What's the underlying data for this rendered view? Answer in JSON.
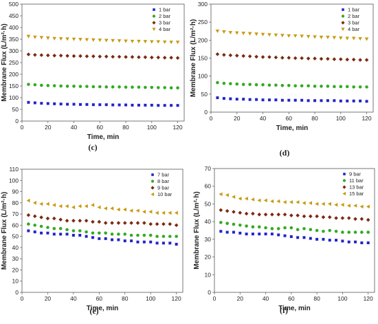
{
  "chart_data": [
    {
      "panel_label": "(c)",
      "type": "scatter",
      "xlabel": "Time, min",
      "ylabel": "Membrane Flux (L/m²·h)",
      "xlim": [
        0,
        125
      ],
      "ylim": [
        0,
        500
      ],
      "xticks": [
        0,
        20,
        40,
        60,
        80,
        100,
        120
      ],
      "yticks": [
        0,
        50,
        100,
        150,
        200,
        250,
        300,
        350,
        400,
        450,
        500
      ],
      "legend_position": "top-right",
      "series": [
        {
          "name": "1 bar",
          "color": "#2222cc",
          "marker": "square",
          "x": [
            5,
            10,
            15,
            20,
            25,
            30,
            35,
            40,
            45,
            50,
            55,
            60,
            65,
            70,
            75,
            80,
            85,
            90,
            95,
            100,
            105,
            110,
            115,
            120
          ],
          "y": [
            80,
            78,
            76,
            75,
            74,
            73,
            72,
            72,
            71,
            71,
            70,
            70,
            70,
            69,
            69,
            69,
            68,
            68,
            68,
            68,
            67,
            67,
            67,
            67
          ]
        },
        {
          "name": "2 bar",
          "color": "#33aa22",
          "marker": "circle",
          "x": [
            5,
            10,
            15,
            20,
            25,
            30,
            35,
            40,
            45,
            50,
            55,
            60,
            65,
            70,
            75,
            80,
            85,
            90,
            95,
            100,
            105,
            110,
            115,
            120
          ],
          "y": [
            157,
            155,
            153,
            152,
            151,
            150,
            149,
            149,
            148,
            148,
            147,
            147,
            146,
            146,
            146,
            145,
            145,
            145,
            144,
            144,
            143,
            143,
            142,
            142
          ]
        },
        {
          "name": "3 bar",
          "color": "#7a2a10",
          "marker": "diamond",
          "x": [
            5,
            10,
            15,
            20,
            25,
            30,
            35,
            40,
            45,
            50,
            55,
            60,
            65,
            70,
            75,
            80,
            85,
            90,
            95,
            100,
            105,
            110,
            115,
            120
          ],
          "y": [
            285,
            283,
            282,
            281,
            280,
            280,
            279,
            278,
            278,
            277,
            277,
            276,
            276,
            275,
            275,
            274,
            274,
            273,
            273,
            272,
            272,
            271,
            271,
            270
          ]
        },
        {
          "name": "4 bar",
          "color": "#c89a10",
          "marker": "triangle-down",
          "x": [
            5,
            10,
            15,
            20,
            25,
            30,
            35,
            40,
            45,
            50,
            55,
            60,
            65,
            70,
            75,
            80,
            85,
            90,
            95,
            100,
            105,
            110,
            115,
            120
          ],
          "y": [
            362,
            359,
            357,
            355,
            353,
            352,
            351,
            350,
            349,
            348,
            347,
            346,
            345,
            344,
            343,
            342,
            341,
            341,
            340,
            339,
            339,
            338,
            337,
            337
          ]
        }
      ]
    },
    {
      "panel_label": "(d)",
      "type": "scatter",
      "xlabel": "Time, min",
      "ylabel": "Membrane Flux (L/m²·h)",
      "xlim": [
        0,
        125
      ],
      "ylim": [
        0,
        300
      ],
      "xticks": [
        0,
        20,
        40,
        60,
        80,
        100,
        120
      ],
      "yticks": [
        0,
        50,
        100,
        150,
        200,
        250,
        300
      ],
      "legend_position": "top-right",
      "series": [
        {
          "name": "1 bar",
          "color": "#2222cc",
          "marker": "square",
          "x": [
            5,
            10,
            15,
            20,
            25,
            30,
            35,
            40,
            45,
            50,
            55,
            60,
            65,
            70,
            75,
            80,
            85,
            90,
            95,
            100,
            105,
            110,
            115,
            120
          ],
          "y": [
            40,
            38,
            37,
            36,
            36,
            35,
            35,
            34,
            34,
            34,
            33,
            33,
            33,
            33,
            32,
            32,
            32,
            32,
            32,
            31,
            31,
            31,
            31,
            30
          ]
        },
        {
          "name": "2 bar",
          "color": "#33aa22",
          "marker": "circle",
          "x": [
            5,
            10,
            15,
            20,
            25,
            30,
            35,
            40,
            45,
            50,
            55,
            60,
            65,
            70,
            75,
            80,
            85,
            90,
            95,
            100,
            105,
            110,
            115,
            120
          ],
          "y": [
            82,
            80,
            79,
            78,
            77,
            77,
            76,
            76,
            75,
            75,
            74,
            74,
            73,
            73,
            73,
            72,
            72,
            72,
            71,
            71,
            71,
            70,
            70,
            70
          ]
        },
        {
          "name": "3 bar",
          "color": "#7a2a10",
          "marker": "diamond",
          "x": [
            5,
            10,
            15,
            20,
            25,
            30,
            35,
            40,
            45,
            50,
            55,
            60,
            65,
            70,
            75,
            80,
            85,
            90,
            95,
            100,
            105,
            110,
            115,
            120
          ],
          "y": [
            161,
            159,
            158,
            157,
            156,
            155,
            154,
            153,
            153,
            152,
            151,
            151,
            150,
            150,
            149,
            149,
            148,
            148,
            147,
            147,
            146,
            146,
            145,
            145
          ]
        },
        {
          "name": "4 bar",
          "color": "#c89a10",
          "marker": "triangle-down",
          "x": [
            5,
            10,
            15,
            20,
            25,
            30,
            35,
            40,
            45,
            50,
            55,
            60,
            65,
            70,
            75,
            80,
            85,
            90,
            95,
            100,
            105,
            110,
            115,
            120
          ],
          "y": [
            225,
            223,
            221,
            220,
            219,
            218,
            217,
            216,
            215,
            214,
            213,
            212,
            212,
            211,
            210,
            209,
            208,
            208,
            207,
            206,
            205,
            205,
            204,
            203
          ]
        }
      ]
    },
    {
      "panel_label": "(e)",
      "type": "scatter",
      "xlabel": "Time, min",
      "ylabel": "Membrane Flux (L/m²·h)",
      "xlim": [
        0,
        125
      ],
      "ylim": [
        0,
        110
      ],
      "xticks": [
        0,
        20,
        40,
        60,
        80,
        100,
        120
      ],
      "yticks": [
        0,
        10,
        20,
        30,
        40,
        50,
        60,
        70,
        80,
        90,
        100,
        110
      ],
      "legend_position": "top-right",
      "series": [
        {
          "name": "7 bar",
          "color": "#2222cc",
          "marker": "square",
          "x": [
            5,
            10,
            15,
            20,
            25,
            30,
            35,
            40,
            45,
            50,
            55,
            60,
            65,
            70,
            75,
            80,
            85,
            90,
            95,
            100,
            105,
            110,
            115,
            120
          ],
          "y": [
            55,
            54,
            53,
            53,
            52,
            52,
            52,
            51,
            51,
            50,
            49,
            48,
            48,
            47,
            47,
            46,
            46,
            45,
            45,
            45,
            44,
            44,
            44,
            43
          ]
        },
        {
          "name": "8 bar",
          "color": "#33aa22",
          "marker": "circle",
          "x": [
            5,
            10,
            15,
            20,
            25,
            30,
            35,
            40,
            45,
            50,
            55,
            60,
            65,
            70,
            75,
            80,
            85,
            90,
            95,
            100,
            105,
            110,
            115,
            120
          ],
          "y": [
            61,
            60,
            59,
            58,
            57,
            57,
            56,
            55,
            55,
            54,
            53,
            53,
            53,
            52,
            52,
            52,
            51,
            51,
            51,
            51,
            50,
            50,
            50,
            50
          ]
        },
        {
          "name": "9 bar",
          "color": "#7a2a10",
          "marker": "diamond",
          "x": [
            5,
            10,
            15,
            20,
            25,
            30,
            35,
            40,
            45,
            50,
            55,
            60,
            65,
            70,
            75,
            80,
            85,
            90,
            95,
            100,
            105,
            110,
            115,
            120
          ],
          "y": [
            69,
            68,
            67,
            66,
            66,
            65,
            64,
            64,
            64,
            64,
            63,
            63,
            62,
            62,
            62,
            62,
            62,
            62,
            62,
            61,
            61,
            61,
            61,
            60
          ]
        },
        {
          "name": "10 bar",
          "color": "#c89a10",
          "marker": "triangle-left",
          "x": [
            5,
            10,
            15,
            20,
            25,
            30,
            35,
            40,
            45,
            50,
            55,
            60,
            65,
            70,
            75,
            80,
            85,
            90,
            95,
            100,
            105,
            110,
            115,
            120
          ],
          "y": [
            82,
            80,
            79,
            79,
            78,
            77,
            77,
            76,
            77,
            77,
            78,
            76,
            75,
            75,
            74,
            74,
            73,
            73,
            72,
            72,
            71,
            71,
            71,
            71
          ]
        }
      ]
    },
    {
      "panel_label": "(f)",
      "type": "scatter",
      "xlabel": "Time, min",
      "ylabel": "Membrane Flux (L/m²·h)",
      "xlim": [
        0,
        125
      ],
      "ylim": [
        0,
        70
      ],
      "xticks": [
        0,
        20,
        40,
        60,
        80,
        100,
        120
      ],
      "yticks": [
        0,
        10,
        20,
        30,
        40,
        50,
        60,
        70
      ],
      "legend_position": "top-right",
      "series": [
        {
          "name": "9 bar",
          "color": "#2222cc",
          "marker": "square",
          "x": [
            5,
            10,
            15,
            20,
            25,
            30,
            35,
            40,
            45,
            50,
            55,
            60,
            65,
            70,
            75,
            80,
            85,
            90,
            95,
            100,
            105,
            110,
            115,
            120
          ],
          "y": [
            34.5,
            34,
            34,
            33.5,
            33,
            33,
            33,
            33,
            33,
            32.5,
            32,
            31.5,
            31,
            31,
            30.5,
            30,
            30,
            29.5,
            29.5,
            29,
            28.5,
            28.5,
            28,
            28
          ]
        },
        {
          "name": "11 bar",
          "color": "#33aa22",
          "marker": "circle",
          "x": [
            5,
            10,
            15,
            20,
            25,
            30,
            35,
            40,
            45,
            50,
            55,
            60,
            65,
            70,
            75,
            80,
            85,
            90,
            95,
            100,
            105,
            110,
            115,
            120
          ],
          "y": [
            39.5,
            39,
            38.5,
            38,
            37.5,
            37,
            37,
            36.5,
            36,
            36,
            36.5,
            36.5,
            35.5,
            36,
            35.5,
            35,
            34.5,
            35,
            34.5,
            34,
            34,
            34,
            34,
            34
          ]
        },
        {
          "name": "13 bar",
          "color": "#7a2a10",
          "marker": "diamond",
          "x": [
            5,
            10,
            15,
            20,
            25,
            30,
            35,
            40,
            45,
            50,
            55,
            60,
            65,
            70,
            75,
            80,
            85,
            90,
            95,
            100,
            105,
            110,
            115,
            120
          ],
          "y": [
            46.5,
            46,
            45.5,
            45,
            44.5,
            44.5,
            44,
            44,
            44,
            44,
            44,
            43.5,
            43.5,
            43,
            43,
            43,
            42.5,
            42.5,
            42,
            42,
            42,
            41.5,
            41.5,
            41
          ]
        },
        {
          "name": "15 bar",
          "color": "#c89a10",
          "marker": "triangle-left",
          "x": [
            5,
            10,
            15,
            20,
            25,
            30,
            35,
            40,
            45,
            50,
            55,
            60,
            65,
            70,
            75,
            80,
            85,
            90,
            95,
            100,
            105,
            110,
            115,
            120
          ],
          "y": [
            55.5,
            55,
            54,
            53,
            53,
            52.5,
            52,
            52,
            51.5,
            51.5,
            51,
            51,
            51,
            50.5,
            50.5,
            50,
            50,
            50,
            49.5,
            49.5,
            49,
            49,
            48.5,
            48.5
          ]
        }
      ]
    }
  ]
}
